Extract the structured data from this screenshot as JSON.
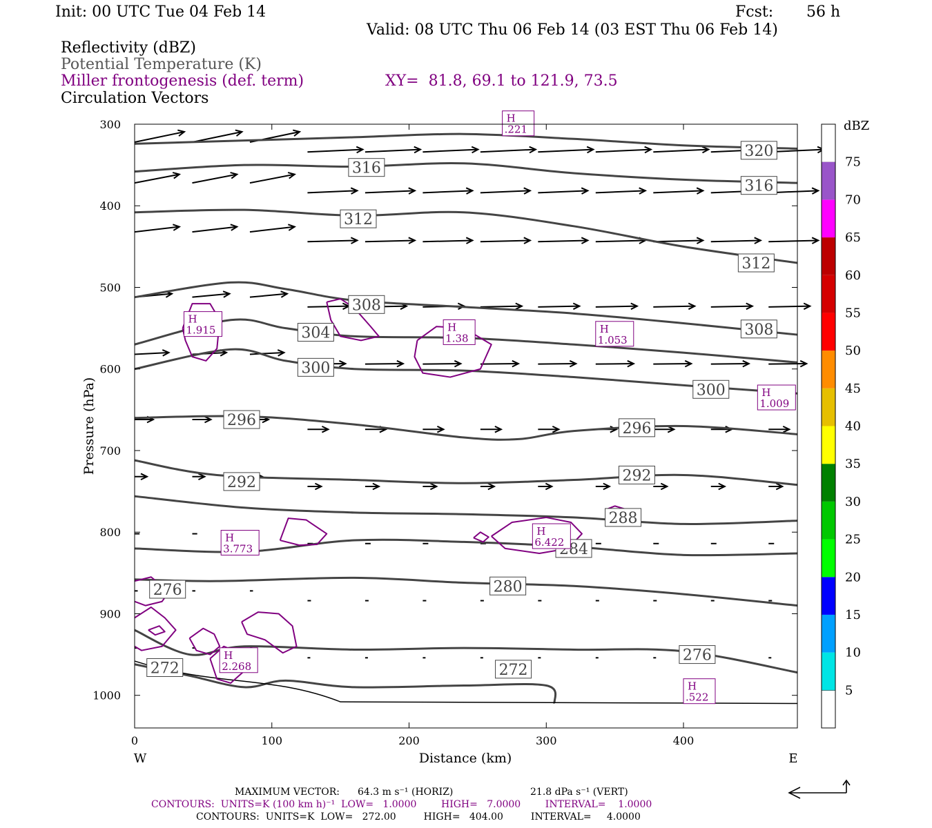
{
  "header": {
    "init": "Init: 00 UTC Tue 04 Feb 14",
    "fcst_label": "Fcst:",
    "fcst_value": "56 h",
    "valid": "Valid: 08 UTC Thu 06 Feb 14 (03 EST Thu 06 Feb 14)"
  },
  "legend_text": {
    "line1": "Reflectivity (dBZ)",
    "line2": "Potential Temperature (K)",
    "line3": "Miller frontogenesis (def. term)",
    "xy": "XY=  81.8, 69.1 to 121.9, 73.5",
    "line4": "Circulation Vectors"
  },
  "footer": {
    "max_vector_label": "MAXIMUM VECTOR:",
    "max_horiz": "64.3 m s⁻¹ (HORIZ)",
    "max_vert": "21.8 dPa s⁻¹ (VERT)",
    "contours_purple": "CONTOURS:  UNITS=K (100 km h)⁻¹  LOW=   1.0000        HIGH=   7.0000        INTERVAL=    1.0000",
    "contours_black": "CONTOURS:  UNITS=K  LOW=   272.00         HIGH=   404.00         INTERVAL=     4.0000"
  },
  "chart_data": {
    "type": "cross-section",
    "xlabel": "Distance (km)",
    "ylabel": "Pressure (hPa)",
    "xlim": [
      0,
      483
    ],
    "ylim": [
      1040,
      300
    ],
    "y_log_scale": false,
    "x_ticks": [
      "0",
      "100",
      "200",
      "300",
      "400"
    ],
    "x_tick_values": [
      0,
      100,
      200,
      300,
      400
    ],
    "y_ticks": [
      "300",
      "400",
      "500",
      "600",
      "700",
      "800",
      "900",
      "1000"
    ],
    "y_tick_values": [
      300,
      400,
      500,
      600,
      700,
      800,
      900,
      1000
    ],
    "x_left_label": "W",
    "x_right_label": "E",
    "colorbar": {
      "unit": "dBZ",
      "labels": [
        "5",
        "10",
        "15",
        "20",
        "25",
        "30",
        "35",
        "40",
        "45",
        "50",
        "55",
        "60",
        "65",
        "70",
        "75"
      ],
      "values": [
        5,
        10,
        15,
        20,
        25,
        30,
        35,
        40,
        45,
        50,
        55,
        60,
        65,
        70,
        75
      ],
      "colors": [
        "#00e5e5",
        "#00a0ff",
        "#0000ff",
        "#00ff00",
        "#00c800",
        "#008000",
        "#ffff00",
        "#e6bf00",
        "#ff8c00",
        "#ff0000",
        "#d40000",
        "#bc0000",
        "#ff00ff",
        "#9955c9",
        "#ffffff"
      ]
    },
    "theta_contours": [
      {
        "label": "320",
        "points": [
          [
            0,
            324
          ],
          [
            80,
            320
          ],
          [
            160,
            316
          ],
          [
            240,
            312
          ],
          [
            320,
            318
          ],
          [
            400,
            326
          ],
          [
            483,
            330
          ]
        ]
      },
      {
        "label": "316",
        "points": [
          [
            0,
            358
          ],
          [
            80,
            350
          ],
          [
            160,
            352
          ],
          [
            240,
            348
          ],
          [
            320,
            360
          ],
          [
            400,
            368
          ],
          [
            483,
            372
          ]
        ]
      },
      {
        "label": "312",
        "points": [
          [
            0,
            408
          ],
          [
            80,
            405
          ],
          [
            160,
            412
          ],
          [
            240,
            408
          ],
          [
            320,
            425
          ],
          [
            400,
            450
          ],
          [
            483,
            470
          ]
        ]
      },
      {
        "label": "308",
        "points": [
          [
            0,
            512
          ],
          [
            70,
            494
          ],
          [
            110,
            502
          ],
          [
            160,
            516
          ],
          [
            240,
            524
          ],
          [
            320,
            532
          ],
          [
            400,
            544
          ],
          [
            483,
            558
          ]
        ]
      },
      {
        "label": "304",
        "points": [
          [
            0,
            570
          ],
          [
            70,
            540
          ],
          [
            110,
            550
          ],
          [
            160,
            560
          ],
          [
            240,
            562
          ],
          [
            320,
            570
          ],
          [
            400,
            580
          ],
          [
            483,
            592
          ]
        ]
      },
      {
        "label": "300",
        "points": [
          [
            0,
            600
          ],
          [
            70,
            576
          ],
          [
            110,
            590
          ],
          [
            160,
            600
          ],
          [
            240,
            602
          ],
          [
            320,
            610
          ],
          [
            400,
            620
          ],
          [
            483,
            630
          ]
        ]
      },
      {
        "label": "296",
        "points": [
          [
            0,
            660
          ],
          [
            80,
            658
          ],
          [
            160,
            668
          ],
          [
            240,
            684
          ],
          [
            280,
            686
          ],
          [
            320,
            676
          ],
          [
            400,
            670
          ],
          [
            483,
            680
          ]
        ]
      },
      {
        "label": "292",
        "points": [
          [
            0,
            712
          ],
          [
            60,
            730
          ],
          [
            160,
            736
          ],
          [
            240,
            740
          ],
          [
            320,
            736
          ],
          [
            400,
            730
          ],
          [
            483,
            742
          ]
        ]
      },
      {
        "label": "288",
        "points": [
          [
            0,
            756
          ],
          [
            80,
            770
          ],
          [
            160,
            776
          ],
          [
            240,
            778
          ],
          [
            320,
            782
          ],
          [
            400,
            790
          ],
          [
            483,
            786
          ]
        ]
      },
      {
        "label": "284",
        "points": [
          [
            0,
            820
          ],
          [
            80,
            824
          ],
          [
            160,
            810
          ],
          [
            240,
            812
          ],
          [
            320,
            818
          ],
          [
            400,
            828
          ],
          [
            483,
            826
          ]
        ]
      },
      {
        "label": "280",
        "points": [
          [
            0,
            858
          ],
          [
            60,
            860
          ],
          [
            160,
            856
          ],
          [
            240,
            862
          ],
          [
            320,
            866
          ],
          [
            400,
            876
          ],
          [
            483,
            890
          ]
        ]
      },
      {
        "label": "276",
        "points": [
          [
            0,
            920
          ],
          [
            40,
            950
          ],
          [
            80,
            940
          ],
          [
            160,
            944
          ],
          [
            240,
            942
          ],
          [
            320,
            944
          ],
          [
            400,
            946
          ],
          [
            483,
            972
          ]
        ]
      },
      {
        "label": "272",
        "points": [
          [
            0,
            962
          ],
          [
            40,
            976
          ],
          [
            80,
            990
          ],
          [
            110,
            982
          ],
          [
            160,
            990
          ],
          [
            240,
            988
          ],
          [
            300,
            988
          ],
          [
            306,
            1010
          ]
        ]
      }
    ],
    "theta_labels": [
      {
        "text": "320",
        "x": 455,
        "y": 332
      },
      {
        "text": "316",
        "x": 169,
        "y": 353
      },
      {
        "text": "316",
        "x": 455,
        "y": 375
      },
      {
        "text": "312",
        "x": 163,
        "y": 416
      },
      {
        "text": "312",
        "x": 453,
        "y": 470
      },
      {
        "text": "308",
        "x": 169,
        "y": 521
      },
      {
        "text": "308",
        "x": 455,
        "y": 551
      },
      {
        "text": "304",
        "x": 132,
        "y": 555
      },
      {
        "text": "300",
        "x": 132,
        "y": 598
      },
      {
        "text": "300",
        "x": 420,
        "y": 625
      },
      {
        "text": "296",
        "x": 78,
        "y": 662
      },
      {
        "text": "296",
        "x": 366,
        "y": 672
      },
      {
        "text": "292",
        "x": 78,
        "y": 738
      },
      {
        "text": "292",
        "x": 366,
        "y": 730
      },
      {
        "text": "288",
        "x": 356,
        "y": 782
      },
      {
        "text": "284",
        "x": 320,
        "y": 820
      },
      {
        "text": "280",
        "x": 272,
        "y": 866
      },
      {
        "text": "276",
        "x": 24,
        "y": 870
      },
      {
        "text": "276",
        "x": 410,
        "y": 950
      },
      {
        "text": "272",
        "x": 22,
        "y": 966
      },
      {
        "text": "272",
        "x": 276,
        "y": 968
      }
    ],
    "highs": [
      {
        "text": "1.915",
        "x": 39,
        "y": 550
      },
      {
        "text": "1.38",
        "x": 228,
        "y": 560
      },
      {
        "text": "1.053",
        "x": 339,
        "y": 562
      },
      {
        "text": "1.009",
        "x": 457,
        "y": 640
      },
      {
        "text": "3.773",
        "x": 66,
        "y": 818
      },
      {
        "text": "6.422",
        "x": 293,
        "y": 810
      },
      {
        "text": "2.268",
        "x": 65,
        "y": 962
      },
      {
        "text": ".522",
        "x": 403,
        "y": 1000
      },
      {
        "text": ".221",
        "x": 271,
        "y": 304
      }
    ],
    "frontogenesis_contours": [
      [
        [
          35,
          550
        ],
        [
          42,
          520
        ],
        [
          55,
          520
        ],
        [
          62,
          540
        ],
        [
          60,
          575
        ],
        [
          52,
          590
        ],
        [
          42,
          585
        ],
        [
          37,
          565
        ],
        [
          35,
          550
        ]
      ],
      [
        [
          140,
          518
        ],
        [
          150,
          514
        ],
        [
          160,
          525
        ],
        [
          172,
          548
        ],
        [
          178,
          560
        ],
        [
          165,
          565
        ],
        [
          150,
          560
        ],
        [
          143,
          540
        ],
        [
          140,
          518
        ]
      ],
      [
        [
          206,
          565
        ],
        [
          220,
          548
        ],
        [
          240,
          550
        ],
        [
          260,
          570
        ],
        [
          252,
          600
        ],
        [
          230,
          610
        ],
        [
          210,
          605
        ],
        [
          204,
          585
        ],
        [
          206,
          565
        ]
      ],
      [
        [
          106,
          810
        ],
        [
          112,
          783
        ],
        [
          125,
          785
        ],
        [
          140,
          802
        ],
        [
          133,
          815
        ],
        [
          120,
          816
        ],
        [
          106,
          810
        ]
      ],
      [
        [
          260,
          805
        ],
        [
          275,
          788
        ],
        [
          300,
          782
        ],
        [
          318,
          788
        ],
        [
          326,
          802
        ],
        [
          316,
          820
        ],
        [
          295,
          826
        ],
        [
          270,
          820
        ],
        [
          260,
          805
        ]
      ],
      [
        [
          247,
          807
        ],
        [
          252,
          800
        ],
        [
          258,
          806
        ],
        [
          254,
          812
        ],
        [
          247,
          807
        ]
      ],
      [
        [
          344,
          772
        ],
        [
          350,
          768
        ],
        [
          358,
          772
        ],
        [
          350,
          776
        ],
        [
          344,
          772
        ]
      ],
      [
        [
          0,
          860
        ],
        [
          12,
          855
        ],
        [
          25,
          873
        ],
        [
          20,
          885
        ],
        [
          8,
          890
        ],
        [
          0,
          885
        ]
      ],
      [
        [
          0,
          905
        ],
        [
          12,
          892
        ],
        [
          22,
          905
        ],
        [
          30,
          920
        ],
        [
          20,
          940
        ],
        [
          5,
          945
        ],
        [
          0,
          940
        ]
      ],
      [
        [
          10,
          920
        ],
        [
          18,
          915
        ],
        [
          22,
          922
        ],
        [
          15,
          926
        ],
        [
          10,
          920
        ]
      ],
      [
        [
          40,
          930
        ],
        [
          50,
          918
        ],
        [
          58,
          925
        ],
        [
          62,
          940
        ],
        [
          55,
          950
        ],
        [
          45,
          945
        ],
        [
          40,
          930
        ]
      ],
      [
        [
          55,
          955
        ],
        [
          65,
          940
        ],
        [
          80,
          950
        ],
        [
          80,
          970
        ],
        [
          70,
          985
        ],
        [
          60,
          980
        ],
        [
          55,
          955
        ]
      ],
      [
        [
          78,
          910
        ],
        [
          90,
          898
        ],
        [
          105,
          900
        ],
        [
          115,
          915
        ],
        [
          118,
          940
        ],
        [
          108,
          948
        ],
        [
          95,
          932
        ],
        [
          82,
          925
        ],
        [
          78,
          910
        ]
      ]
    ]
  }
}
